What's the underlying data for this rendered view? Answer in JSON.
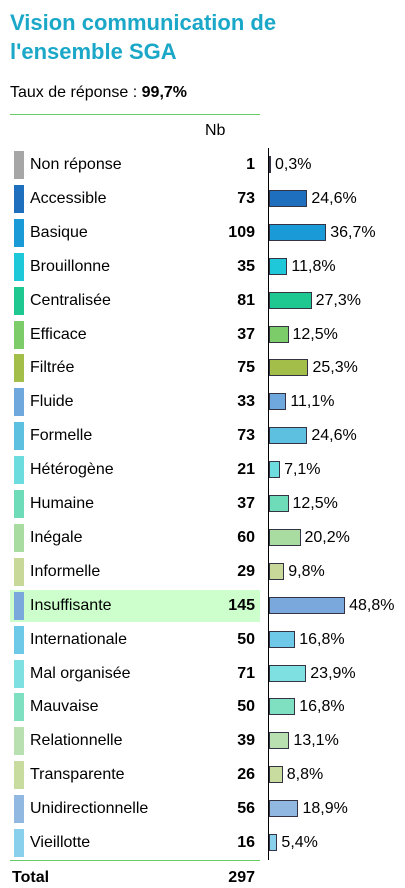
{
  "chart_data": {
    "type": "bar",
    "title": "Vision communication de l'ensemble SGA",
    "subtitle_label": "Taux de réponse :",
    "subtitle_value": "99,7%",
    "count_header": "Nb",
    "categories": [
      "Non réponse",
      "Accessible",
      "Basique",
      "Brouillonne",
      "Centralisée",
      "Efficace",
      "Filtrée",
      "Fluide",
      "Formelle",
      "Hétérogène",
      "Humaine",
      "Inégale",
      "Informelle",
      "Insuffisante",
      "Internationale",
      "Mal organisée",
      "Mauvaise",
      "Relationnelle",
      "Transparente",
      "Unidirectionnelle",
      "Vieillotte"
    ],
    "counts": [
      1,
      73,
      109,
      35,
      81,
      37,
      75,
      33,
      73,
      21,
      37,
      60,
      29,
      145,
      50,
      71,
      50,
      39,
      26,
      56,
      16
    ],
    "values": [
      0.3,
      24.6,
      36.7,
      11.8,
      27.3,
      12.5,
      25.3,
      11.1,
      24.6,
      7.1,
      12.5,
      20.2,
      9.8,
      48.8,
      16.8,
      23.9,
      16.8,
      13.1,
      8.8,
      18.9,
      5.4
    ],
    "value_labels": [
      "0,3%",
      "24,6%",
      "36,7%",
      "11,8%",
      "27,3%",
      "12,5%",
      "25,3%",
      "11,1%",
      "24,6%",
      "7,1%",
      "12,5%",
      "20,2%",
      "9,8%",
      "48,8%",
      "16,8%",
      "23,9%",
      "16,8%",
      "13,1%",
      "8,8%",
      "18,9%",
      "5,4%"
    ],
    "colors": [
      "#a6a6a6",
      "#1f6fbf",
      "#1a9ad6",
      "#1ec8d8",
      "#1ec890",
      "#7ccc6a",
      "#a4be4a",
      "#6fa8dc",
      "#5ec0e0",
      "#6ddcdf",
      "#6edcb8",
      "#a8dca0",
      "#c8d898",
      "#7ba8dc",
      "#6ec8e8",
      "#7ee0e0",
      "#7ee0c0",
      "#b8e0b0",
      "#c8dca0",
      "#90b8e0",
      "#88d0ec"
    ],
    "highlight": "Insuffisante",
    "total_label": "Total",
    "total": 297
  }
}
